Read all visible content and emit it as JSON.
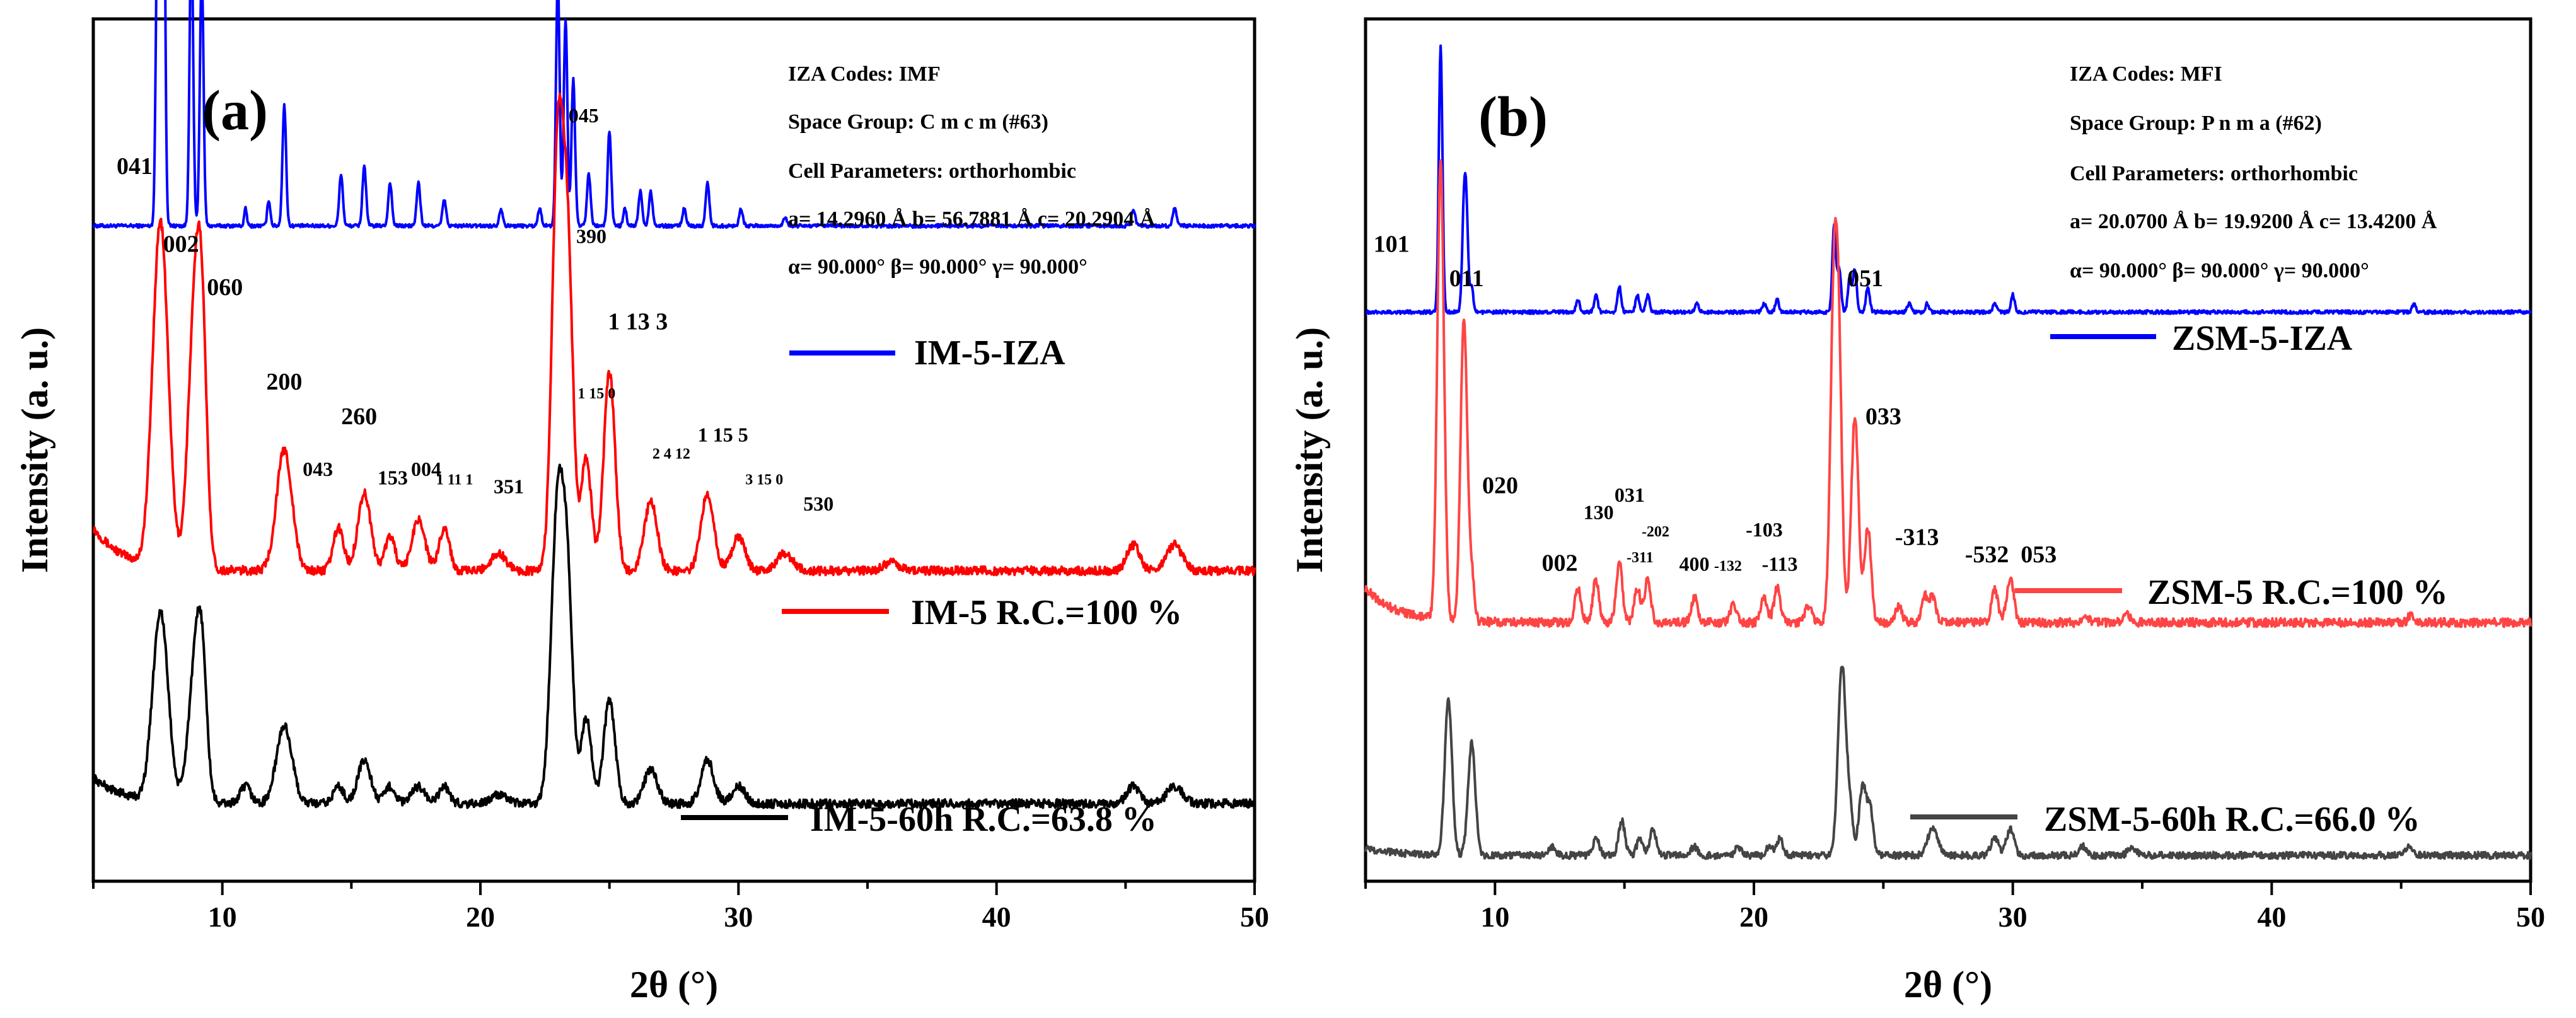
{
  "chart_data": [
    {
      "type": "line",
      "panel_label": "(a)",
      "xlabel": "2θ (°)",
      "ylabel": "Intensity (a. u.)",
      "xlim": [
        5,
        50
      ],
      "xticks": [
        "10",
        "20",
        "30",
        "40",
        "50"
      ],
      "info": [
        "IZA Codes: IMF",
        "Space Group: C m c m (#63)",
        "Cell Parameters: orthorhombic",
        "a= 14.2960 Å b= 56.7881 Å c= 20.2904 Å",
        "α= 90.000° β= 90.000° γ= 90.000°"
      ],
      "series": [
        {
          "name": "IM-5-IZA",
          "color": "#0000ff",
          "baseline": 0.76,
          "noise": 0.002,
          "slope": 0,
          "peaks": [
            [
              7.5,
              0.4,
              0.07
            ],
            [
              7.7,
              0.62,
              0.07
            ],
            [
              8.8,
              0.34,
              0.07
            ],
            [
              9.2,
              0.3,
              0.07
            ],
            [
              10.9,
              0.02,
              0.05
            ],
            [
              11.8,
              0.03,
              0.06
            ],
            [
              12.4,
              0.14,
              0.07
            ],
            [
              14.6,
              0.06,
              0.07
            ],
            [
              15.5,
              0.07,
              0.07
            ],
            [
              16.5,
              0.05,
              0.07
            ],
            [
              17.6,
              0.05,
              0.07
            ],
            [
              18.6,
              0.03,
              0.07
            ],
            [
              20.8,
              0.02,
              0.07
            ],
            [
              22.3,
              0.02,
              0.07
            ],
            [
              23.0,
              0.29,
              0.07
            ],
            [
              23.3,
              0.24,
              0.07
            ],
            [
              23.6,
              0.17,
              0.07
            ],
            [
              24.2,
              0.06,
              0.07
            ],
            [
              25.0,
              0.11,
              0.07
            ],
            [
              25.6,
              0.02,
              0.06
            ],
            [
              26.2,
              0.04,
              0.07
            ],
            [
              26.6,
              0.04,
              0.07
            ],
            [
              27.9,
              0.02,
              0.07
            ],
            [
              28.8,
              0.05,
              0.07
            ],
            [
              30.1,
              0.02,
              0.07
            ],
            [
              31.8,
              0.01,
              0.07
            ],
            [
              45.3,
              0.02,
              0.07
            ],
            [
              46.9,
              0.02,
              0.07
            ]
          ]
        },
        {
          "name": "IM-5 R.C.=100 %",
          "color": "#ff0000",
          "baseline": 0.36,
          "noise": 0.005,
          "slope": 0.05,
          "peaks": [
            [
              7.6,
              0.4,
              0.3
            ],
            [
              8.9,
              0.26,
              0.25
            ],
            [
              9.2,
              0.24,
              0.2
            ],
            [
              12.4,
              0.14,
              0.3
            ],
            [
              14.5,
              0.05,
              0.2
            ],
            [
              15.5,
              0.09,
              0.25
            ],
            [
              16.5,
              0.04,
              0.2
            ],
            [
              17.6,
              0.06,
              0.25
            ],
            [
              18.6,
              0.05,
              0.2
            ],
            [
              20.7,
              0.02,
              0.3
            ],
            [
              23.0,
              0.49,
              0.22
            ],
            [
              23.4,
              0.33,
              0.2
            ],
            [
              24.1,
              0.13,
              0.2
            ],
            [
              25.0,
              0.23,
              0.22
            ],
            [
              26.6,
              0.08,
              0.25
            ],
            [
              28.8,
              0.09,
              0.25
            ],
            [
              30.0,
              0.04,
              0.25
            ],
            [
              31.8,
              0.02,
              0.3
            ],
            [
              35.9,
              0.01,
              0.3
            ],
            [
              45.3,
              0.03,
              0.25
            ],
            [
              46.9,
              0.03,
              0.3
            ]
          ]
        },
        {
          "name": "IM-5-60h R.C.=63.8 %",
          "color": "#000000",
          "baseline": 0.09,
          "noise": 0.005,
          "slope": 0.03,
          "peaks": [
            [
              7.6,
              0.22,
              0.3
            ],
            [
              8.9,
              0.13,
              0.25
            ],
            [
              9.2,
              0.15,
              0.2
            ],
            [
              10.9,
              0.02,
              0.2
            ],
            [
              12.4,
              0.09,
              0.3
            ],
            [
              14.5,
              0.02,
              0.2
            ],
            [
              15.5,
              0.05,
              0.25
            ],
            [
              16.5,
              0.02,
              0.2
            ],
            [
              17.6,
              0.02,
              0.25
            ],
            [
              18.6,
              0.02,
              0.2
            ],
            [
              20.7,
              0.01,
              0.3
            ],
            [
              23.0,
              0.35,
              0.25
            ],
            [
              23.4,
              0.2,
              0.2
            ],
            [
              24.1,
              0.1,
              0.2
            ],
            [
              25.0,
              0.12,
              0.22
            ],
            [
              26.6,
              0.04,
              0.25
            ],
            [
              28.8,
              0.05,
              0.25
            ],
            [
              30.0,
              0.02,
              0.25
            ],
            [
              45.3,
              0.02,
              0.25
            ],
            [
              46.9,
              0.02,
              0.3
            ]
          ]
        }
      ],
      "peak_labels": [
        {
          "text": "041",
          "x": 6.6,
          "y": 0.82,
          "size": "n"
        },
        {
          "text": "002",
          "x": 8.4,
          "y": 0.73,
          "size": "n"
        },
        {
          "text": "060",
          "x": 10.1,
          "y": 0.68,
          "size": "n"
        },
        {
          "text": "200",
          "x": 12.4,
          "y": 0.57,
          "size": "n"
        },
        {
          "text": "260",
          "x": 15.3,
          "y": 0.53,
          "size": "n"
        },
        {
          "text": "043",
          "x": 13.7,
          "y": 0.47,
          "size": "s"
        },
        {
          "text": "153",
          "x": 16.6,
          "y": 0.46,
          "size": "s"
        },
        {
          "text": "004",
          "x": 17.9,
          "y": 0.47,
          "size": "s"
        },
        {
          "text": "1 11 1",
          "x": 19.0,
          "y": 0.46,
          "size": "t"
        },
        {
          "text": "351",
          "x": 21.1,
          "y": 0.45,
          "size": "s"
        },
        {
          "text": "045",
          "x": 24.0,
          "y": 0.88,
          "size": "s"
        },
        {
          "text": "390",
          "x": 24.3,
          "y": 0.74,
          "size": "s"
        },
        {
          "text": "1 13 3",
          "x": 26.1,
          "y": 0.64,
          "size": "n"
        },
        {
          "text": "1 15 0",
          "x": 24.5,
          "y": 0.56,
          "size": "t"
        },
        {
          "text": "2 4 12",
          "x": 27.4,
          "y": 0.49,
          "size": "t"
        },
        {
          "text": "1 15 5",
          "x": 29.4,
          "y": 0.51,
          "size": "s"
        },
        {
          "text": "3 15 0",
          "x": 31.0,
          "y": 0.46,
          "size": "t"
        },
        {
          "text": "530",
          "x": 33.1,
          "y": 0.43,
          "size": "s"
        }
      ]
    },
    {
      "type": "line",
      "panel_label": "(b)",
      "xlabel": "2θ (°)",
      "ylabel": "Intensity (a. u.)",
      "xlim": [
        5,
        50
      ],
      "xticks": [
        "10",
        "20",
        "30",
        "40",
        "50"
      ],
      "info": [
        "IZA Codes: MFI",
        "Space Group: P n m a (#62)",
        "Cell Parameters: orthorhombic",
        "a= 20.0700 Å b= 19.9200 Å c= 13.4200 Å",
        "α= 90.000° β= 90.000° γ= 90.000°"
      ],
      "series": [
        {
          "name": "ZSM-5-IZA",
          "color": "#0000ff",
          "baseline": 0.66,
          "noise": 0.002,
          "slope": 0,
          "peaks": [
            [
              7.9,
              0.31,
              0.07
            ],
            [
              8.8,
              0.11,
              0.07
            ],
            [
              8.9,
              0.1,
              0.07
            ],
            [
              9.1,
              0.03,
              0.06
            ],
            [
              13.2,
              0.015,
              0.07
            ],
            [
              13.9,
              0.02,
              0.07
            ],
            [
              14.8,
              0.03,
              0.07
            ],
            [
              15.5,
              0.02,
              0.07
            ],
            [
              15.9,
              0.02,
              0.07
            ],
            [
              17.8,
              0.01,
              0.07
            ],
            [
              20.4,
              0.01,
              0.07
            ],
            [
              20.9,
              0.015,
              0.07
            ],
            [
              23.1,
              0.1,
              0.07
            ],
            [
              23.3,
              0.05,
              0.07
            ],
            [
              23.7,
              0.04,
              0.07
            ],
            [
              23.9,
              0.05,
              0.07
            ],
            [
              24.4,
              0.03,
              0.07
            ],
            [
              26.0,
              0.01,
              0.07
            ],
            [
              26.7,
              0.01,
              0.07
            ],
            [
              29.3,
              0.01,
              0.07
            ],
            [
              30.0,
              0.02,
              0.07
            ],
            [
              45.5,
              0.01,
              0.07
            ]
          ]
        },
        {
          "name": "ZSM-5 R.C.=100 %",
          "color": "#ff4444",
          "baseline": 0.3,
          "noise": 0.005,
          "slope": 0.04,
          "peaks": [
            [
              7.9,
              0.53,
              0.13
            ],
            [
              8.8,
              0.35,
              0.13
            ],
            [
              9.1,
              0.05,
              0.1
            ],
            [
              13.2,
              0.04,
              0.12
            ],
            [
              13.9,
              0.05,
              0.12
            ],
            [
              14.8,
              0.07,
              0.12
            ],
            [
              15.5,
              0.04,
              0.12
            ],
            [
              15.9,
              0.05,
              0.12
            ],
            [
              17.7,
              0.03,
              0.12
            ],
            [
              19.2,
              0.02,
              0.12
            ],
            [
              20.4,
              0.03,
              0.12
            ],
            [
              20.9,
              0.04,
              0.12
            ],
            [
              22.1,
              0.02,
              0.12
            ],
            [
              23.1,
              0.39,
              0.14
            ],
            [
              23.3,
              0.22,
              0.12
            ],
            [
              23.9,
              0.24,
              0.14
            ],
            [
              24.4,
              0.11,
              0.13
            ],
            [
              25.6,
              0.02,
              0.12
            ],
            [
              26.6,
              0.03,
              0.12
            ],
            [
              26.9,
              0.03,
              0.12
            ],
            [
              29.3,
              0.04,
              0.12
            ],
            [
              29.9,
              0.05,
              0.14
            ],
            [
              32.8,
              0.01,
              0.12
            ],
            [
              34.4,
              0.01,
              0.12
            ],
            [
              45.4,
              0.01,
              0.12
            ]
          ]
        },
        {
          "name": "ZSM-5-60h R.C.=66.0 %",
          "color": "#444444",
          "baseline": 0.03,
          "noise": 0.004,
          "slope": 0.008,
          "peaks": [
            [
              8.2,
              0.18,
              0.14
            ],
            [
              9.1,
              0.13,
              0.14
            ],
            [
              12.2,
              0.01,
              0.12
            ],
            [
              13.9,
              0.02,
              0.12
            ],
            [
              14.9,
              0.04,
              0.12
            ],
            [
              15.6,
              0.02,
              0.12
            ],
            [
              16.1,
              0.03,
              0.12
            ],
            [
              17.7,
              0.01,
              0.12
            ],
            [
              19.4,
              0.01,
              0.12
            ],
            [
              20.6,
              0.01,
              0.12
            ],
            [
              21.0,
              0.02,
              0.12
            ],
            [
              23.4,
              0.22,
              0.15
            ],
            [
              23.7,
              0.05,
              0.12
            ],
            [
              24.2,
              0.08,
              0.14
            ],
            [
              24.5,
              0.05,
              0.12
            ],
            [
              26.9,
              0.03,
              0.2
            ],
            [
              29.3,
              0.02,
              0.15
            ],
            [
              29.9,
              0.03,
              0.15
            ],
            [
              32.7,
              0.01,
              0.15
            ],
            [
              34.6,
              0.01,
              0.15
            ],
            [
              45.3,
              0.01,
              0.15
            ]
          ]
        }
      ],
      "peak_labels": [
        {
          "text": "101",
          "x": 6.0,
          "y": 0.73,
          "size": "n"
        },
        {
          "text": "011",
          "x": 8.9,
          "y": 0.69,
          "size": "n"
        },
        {
          "text": "020",
          "x": 10.2,
          "y": 0.45,
          "size": "n"
        },
        {
          "text": "002",
          "x": 12.5,
          "y": 0.36,
          "size": "n"
        },
        {
          "text": "130",
          "x": 14.0,
          "y": 0.42,
          "size": "s"
        },
        {
          "text": "031",
          "x": 15.2,
          "y": 0.44,
          "size": "s"
        },
        {
          "text": "-311",
          "x": 15.6,
          "y": 0.37,
          "size": "t"
        },
        {
          "text": "-202",
          "x": 16.2,
          "y": 0.4,
          "size": "t"
        },
        {
          "text": "400",
          "x": 17.7,
          "y": 0.36,
          "size": "s"
        },
        {
          "text": "-132",
          "x": 19.0,
          "y": 0.36,
          "size": "t"
        },
        {
          "text": "-103",
          "x": 20.4,
          "y": 0.4,
          "size": "s"
        },
        {
          "text": "-113",
          "x": 21.0,
          "y": 0.36,
          "size": "s"
        },
        {
          "text": "051",
          "x": 24.3,
          "y": 0.69,
          "size": "n"
        },
        {
          "text": "033",
          "x": 25.0,
          "y": 0.53,
          "size": "n"
        },
        {
          "text": "-313",
          "x": 26.3,
          "y": 0.39,
          "size": "n"
        },
        {
          "text": "-532",
          "x": 29.0,
          "y": 0.37,
          "size": "n"
        },
        {
          "text": "053",
          "x": 31.0,
          "y": 0.37,
          "size": "n"
        }
      ]
    }
  ]
}
